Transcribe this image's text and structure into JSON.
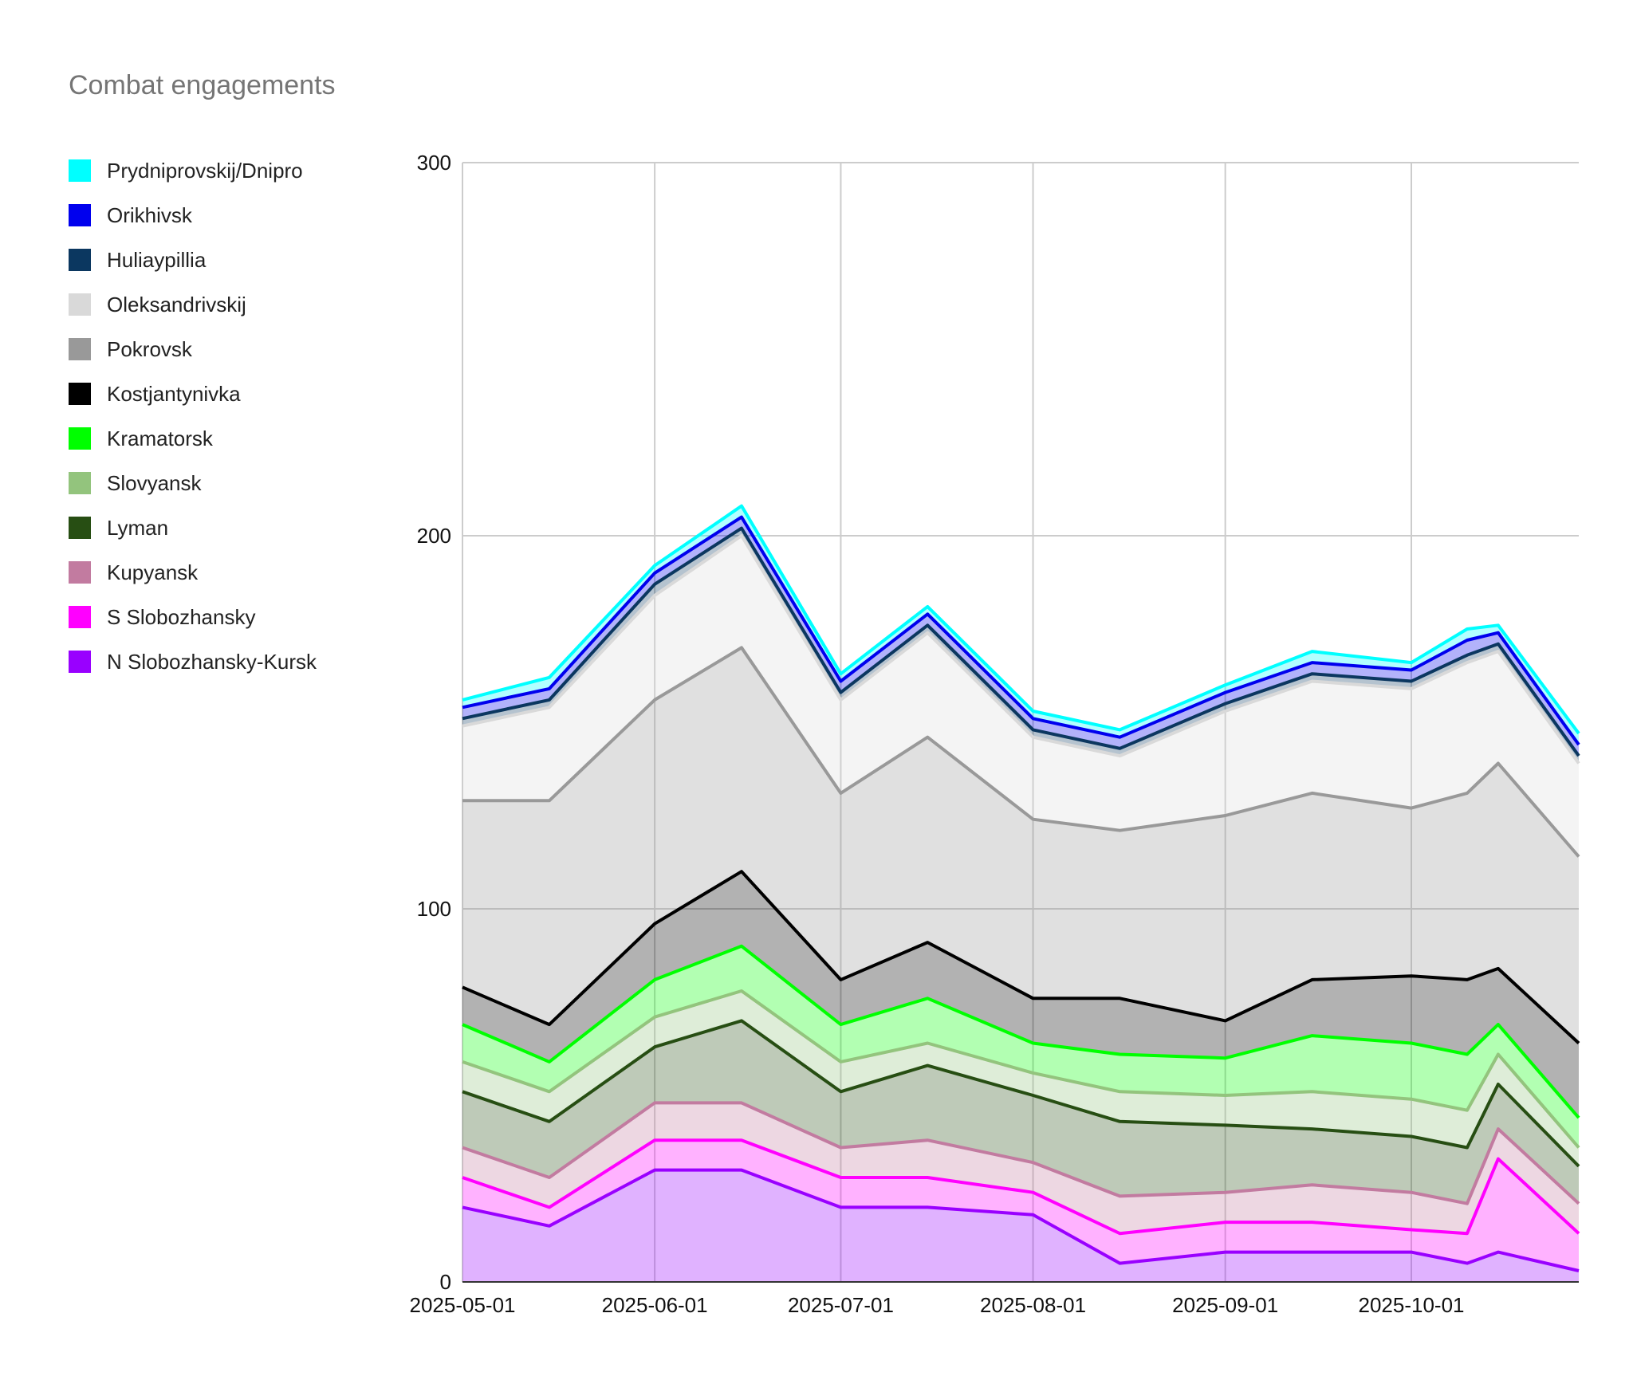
{
  "title": "Combat engagements",
  "chart_data": {
    "type": "area",
    "stacked": true,
    "title": "Combat engagements",
    "xlabel": "",
    "ylabel": "",
    "ylim": [
      0,
      300
    ],
    "y_ticks": [
      "0",
      "100",
      "200",
      "300"
    ],
    "x_ticks": [
      "2025-05-01",
      "2025-06-01",
      "2025-07-01",
      "2025-08-01",
      "2025-09-01",
      "2025-10-01"
    ],
    "x_range": [
      "2025-05-01",
      "2025-10-28"
    ],
    "grid": true,
    "legend_position": "left",
    "x_sample_dates": [
      "2025-05-01",
      "2025-05-15",
      "2025-06-01",
      "2025-06-15",
      "2025-07-01",
      "2025-07-15",
      "2025-08-01",
      "2025-08-15",
      "2025-09-01",
      "2025-09-15",
      "2025-10-01",
      "2025-10-10",
      "2025-10-15",
      "2025-10-28"
    ],
    "series": [
      {
        "name": "Prydniprovskij/Dnipro",
        "color": "#00ffff",
        "values": [
          2,
          3,
          2,
          3,
          2,
          2,
          2,
          2,
          2,
          3,
          2,
          3,
          2,
          3
        ]
      },
      {
        "name": "Orikhivsk",
        "color": "#0000ee",
        "values": [
          3,
          3,
          3,
          3,
          3,
          3,
          3,
          3,
          3,
          3,
          3,
          4,
          3,
          3
        ]
      },
      {
        "name": "Huliaypillia",
        "color": "#0b3760",
        "values": [
          2,
          2,
          3,
          2,
          2,
          2,
          2,
          2,
          2,
          2,
          2,
          2,
          2,
          2
        ]
      },
      {
        "name": "Oleksandrivskij",
        "color": "#d9d9d9",
        "values": [
          20,
          25,
          28,
          30,
          25,
          28,
          22,
          20,
          28,
          30,
          32,
          35,
          30,
          25
        ]
      },
      {
        "name": "Pokrovsk",
        "color": "#999999",
        "values": [
          50,
          60,
          60,
          60,
          50,
          55,
          48,
          45,
          55,
          50,
          45,
          50,
          55,
          50
        ]
      },
      {
        "name": "Kostjantynivka",
        "color": "#000000",
        "values": [
          10,
          10,
          15,
          20,
          12,
          15,
          12,
          15,
          10,
          15,
          18,
          20,
          15,
          20
        ]
      },
      {
        "name": "Kramatorsk",
        "color": "#00ff00",
        "values": [
          10,
          8,
          10,
          12,
          10,
          12,
          8,
          10,
          10,
          15,
          15,
          15,
          8,
          8
        ]
      },
      {
        "name": "Slovyansk",
        "color": "#93c47d",
        "values": [
          8,
          8,
          8,
          8,
          8,
          6,
          6,
          8,
          8,
          10,
          10,
          10,
          8,
          5
        ]
      },
      {
        "name": "Lyman",
        "color": "#274e13",
        "values": [
          15,
          15,
          15,
          22,
          15,
          20,
          18,
          20,
          18,
          15,
          15,
          15,
          12,
          10
        ]
      },
      {
        "name": "Kupyansk",
        "color": "#c27ba0",
        "values": [
          8,
          8,
          10,
          10,
          8,
          10,
          8,
          10,
          8,
          10,
          10,
          8,
          8,
          8
        ]
      },
      {
        "name": "S Slobozhansky",
        "color": "#ff00ff",
        "values": [
          8,
          5,
          8,
          8,
          8,
          8,
          6,
          8,
          8,
          8,
          6,
          8,
          25,
          10
        ]
      },
      {
        "name": "N Slobozhansky-Kursk",
        "color": "#9900ff",
        "values": [
          20,
          15,
          30,
          30,
          20,
          20,
          18,
          5,
          8,
          8,
          8,
          5,
          8,
          3
        ]
      }
    ]
  }
}
